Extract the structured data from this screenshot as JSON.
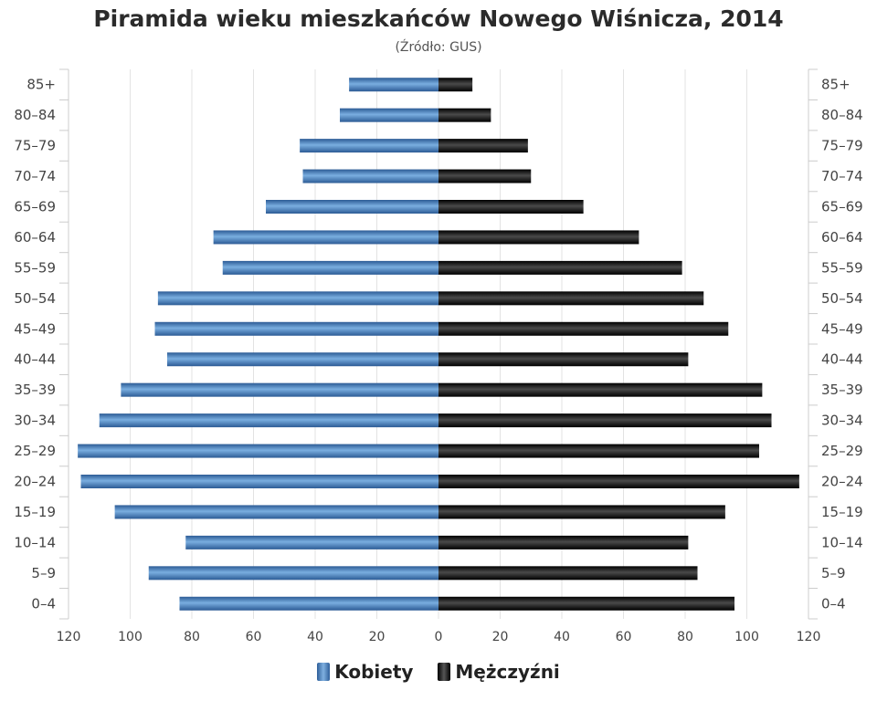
{
  "title": "Piramida wieku mieszkańców Nowego Wiśnicza, 2014",
  "subtitle": "(Źródło: GUS)",
  "colors": {
    "female": "#3f74b3",
    "male": "#111111",
    "grid": "#e3e3e3"
  },
  "legend": {
    "female_label": "Kobiety",
    "male_label": "Mężczyźni"
  },
  "chart_data": {
    "type": "bar",
    "orientation": "horizontal-pyramid",
    "categories": [
      "85+",
      "80–84",
      "75–79",
      "70–74",
      "65–69",
      "60–64",
      "55–59",
      "50–54",
      "45–49",
      "40–44",
      "35–39",
      "30–34",
      "25–29",
      "20–24",
      "15–19",
      "10–14",
      "5–9",
      "0–4"
    ],
    "series": [
      {
        "name": "Kobiety",
        "side": "left",
        "values": [
          29,
          32,
          45,
          44,
          56,
          73,
          70,
          91,
          92,
          88,
          103,
          110,
          117,
          116,
          105,
          82,
          94,
          84
        ]
      },
      {
        "name": "Mężczyźni",
        "side": "right",
        "values": [
          11,
          17,
          29,
          30,
          47,
          65,
          79,
          86,
          94,
          81,
          105,
          108,
          104,
          117,
          93,
          81,
          84,
          96
        ]
      }
    ],
    "xlim": [
      -120,
      120
    ],
    "x_ticks": [
      "120",
      "100",
      "80",
      "60",
      "40",
      "20",
      "0",
      "20",
      "40",
      "60",
      "80",
      "100",
      "120"
    ],
    "grid": true,
    "legend_position": "bottom-center"
  }
}
